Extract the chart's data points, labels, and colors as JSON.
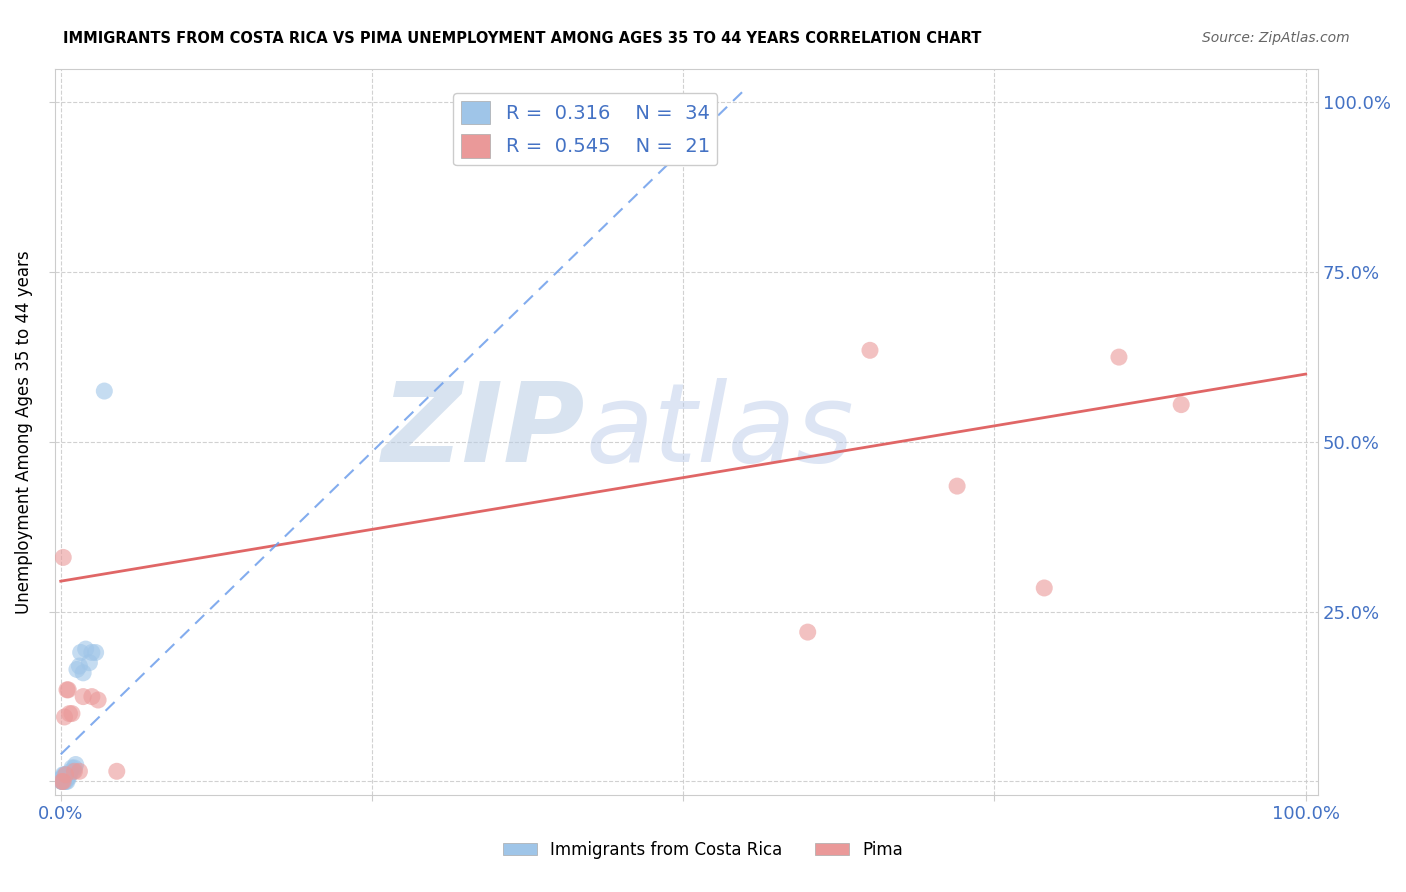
{
  "title": "IMMIGRANTS FROM COSTA RICA VS PIMA UNEMPLOYMENT AMONG AGES 35 TO 44 YEARS CORRELATION CHART",
  "source": "Source: ZipAtlas.com",
  "ylabel": "Unemployment Among Ages 35 to 44 years",
  "legend_label1": "Immigrants from Costa Rica",
  "legend_label2": "Pima",
  "r1": "0.316",
  "n1": "34",
  "r2": "0.545",
  "n2": "21",
  "color_blue": "#9fc5e8",
  "color_pink": "#ea9999",
  "color_blue_line": "#6d9eeb",
  "color_pink_line": "#e06666",
  "color_axis": "#4472c4",
  "grid_color": "#cccccc",
  "background_color": "#ffffff",
  "watermark_color": "#c9daf8",
  "blue_points_x": [
    0.001,
    0.001,
    0.001,
    0.001,
    0.001,
    0.002,
    0.002,
    0.002,
    0.002,
    0.003,
    0.003,
    0.003,
    0.004,
    0.004,
    0.004,
    0.005,
    0.005,
    0.006,
    0.006,
    0.007,
    0.008,
    0.009,
    0.01,
    0.011,
    0.012,
    0.013,
    0.015,
    0.016,
    0.018,
    0.02,
    0.023,
    0.025,
    0.028,
    0.035
  ],
  "blue_points_y": [
    0.0,
    0.0,
    0.0,
    0.005,
    0.005,
    0.0,
    0.0,
    0.005,
    0.01,
    0.0,
    0.005,
    0.01,
    0.0,
    0.005,
    0.01,
    0.0,
    0.005,
    0.005,
    0.01,
    0.01,
    0.015,
    0.02,
    0.015,
    0.02,
    0.025,
    0.165,
    0.17,
    0.19,
    0.16,
    0.195,
    0.175,
    0.19,
    0.19,
    0.575
  ],
  "pink_points_x": [
    0.001,
    0.002,
    0.003,
    0.004,
    0.005,
    0.006,
    0.007,
    0.009,
    0.011,
    0.015,
    0.018,
    0.025,
    0.03,
    0.045,
    0.002,
    0.6,
    0.65,
    0.72,
    0.79,
    0.85,
    0.9
  ],
  "pink_points_y": [
    0.0,
    0.0,
    0.095,
    0.01,
    0.135,
    0.135,
    0.1,
    0.1,
    0.015,
    0.015,
    0.125,
    0.125,
    0.12,
    0.015,
    0.33,
    0.22,
    0.635,
    0.435,
    0.285,
    0.625,
    0.555
  ],
  "pink_trend_x0": 0.0,
  "pink_trend_y0": 0.295,
  "pink_trend_x1": 1.0,
  "pink_trend_y1": 0.6,
  "blue_trend_x0": 0.0,
  "blue_trend_y0": 0.04,
  "blue_trend_x1": 0.55,
  "blue_trend_y1": 1.02,
  "xticks": [
    0.0,
    0.25,
    0.5,
    0.75,
    1.0
  ],
  "xtick_labels": [
    "0.0%",
    "",
    "",
    "",
    "100.0%"
  ],
  "yticks": [
    0.0,
    0.25,
    0.5,
    0.75,
    1.0
  ],
  "ytick_labels_right": [
    "",
    "25.0%",
    "50.0%",
    "75.0%",
    "100.0%"
  ],
  "xlim": [
    -0.005,
    1.01
  ],
  "ylim": [
    -0.02,
    1.05
  ]
}
